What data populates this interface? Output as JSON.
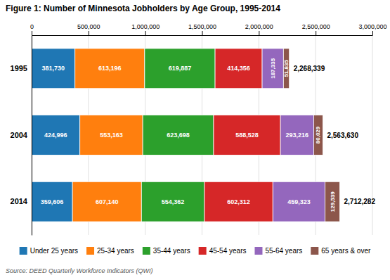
{
  "chart_data": {
    "type": "bar",
    "orientation": "horizontal",
    "stacked": true,
    "title": "Figure 1: Number of Minnesota Jobholders by Age Group, 1995-2014",
    "source": "Source: DEED Quarterly Workforce Indicators (QWI)",
    "categories": [
      "1995",
      "2004",
      "2014"
    ],
    "series": [
      {
        "name": "Under 25 years",
        "values": [
          381730,
          424996,
          359606
        ],
        "value_labels": [
          "381,730",
          "424,996",
          "359,606"
        ]
      },
      {
        "name": "25-34 years",
        "values": [
          613196,
          553163,
          607140
        ],
        "value_labels": [
          "613,196",
          "553,163",
          "607,140"
        ]
      },
      {
        "name": "35-44 years",
        "values": [
          619887,
          623698,
          554362
        ],
        "value_labels": [
          "619,887",
          "623,698",
          "554,362"
        ]
      },
      {
        "name": "45-54 years",
        "values": [
          414356,
          588528,
          602312
        ],
        "value_labels": [
          "414,356",
          "588,528",
          "602,312"
        ]
      },
      {
        "name": "55-64 years",
        "values": [
          187335,
          293216,
          459323
        ],
        "value_labels": [
          "187,335",
          "293,216",
          "459,323"
        ]
      },
      {
        "name": "65 years & over",
        "values": [
          51835,
          80029,
          129539
        ],
        "value_labels": [
          "51,835",
          "80,029",
          "129,539"
        ]
      }
    ],
    "totals": [
      2268339,
      2563630,
      2712282
    ],
    "total_labels": [
      "2,268,339",
      "2,563,630",
      "2,712,282"
    ],
    "xlim": [
      0,
      3000000
    ],
    "xticks": [
      0,
      {
        "value": 500000,
        "label": "500,000"
      },
      {
        "value": 1000000,
        "label": "1,000,000"
      },
      {
        "value": 1500000,
        "label": "1,500,000"
      },
      {
        "value": 2000000,
        "label": "2,000,000"
      },
      {
        "value": 2500000,
        "label": "2,500,000"
      },
      {
        "value": 3000000,
        "label": "3,000,000"
      }
    ],
    "grid": true,
    "data_labels": true,
    "legend": "bottom"
  }
}
